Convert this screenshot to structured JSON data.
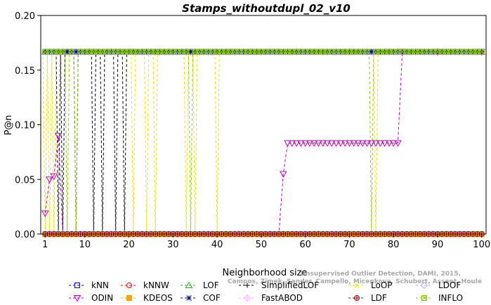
{
  "chart_data": {
    "type": "line",
    "title": "Stamps_withoutdupl_02_v10",
    "xlabel": "Neighborhood size",
    "ylabel": "P@n",
    "xlim": [
      0,
      101
    ],
    "ylim": [
      0,
      0.2
    ],
    "xticks": [
      1,
      10,
      20,
      30,
      40,
      50,
      60,
      70,
      80,
      90,
      100
    ],
    "yticks": [
      0.0,
      0.05,
      0.1,
      0.15,
      0.2
    ],
    "ytick_labels": [
      "0.00",
      "0.05",
      "0.10",
      "0.15",
      "0.20"
    ],
    "grid": false,
    "legend_position": "bottom",
    "watermark": [
      "Campos, Zimek, Sander, Campello, Micenkova, Schubert, Assent, Houle",
      "Unsupervised Outlier Detection, DAMI, 2015."
    ],
    "series": [
      {
        "name": "kNN",
        "color": "#0000ff",
        "marker": "square",
        "segments": [
          {
            "x0": 1,
            "x1": 100,
            "y": 0.1667
          }
        ]
      },
      {
        "name": "kNNW",
        "color": "#ff0000",
        "marker": "circle",
        "segments": [
          {
            "x0": 1,
            "x1": 100,
            "y": 0.1667
          }
        ]
      },
      {
        "name": "LOF",
        "color": "#00cc00",
        "marker": "triangle-up",
        "segments": [
          {
            "x0": 1,
            "x1": 100,
            "y": 0.1667
          }
        ]
      },
      {
        "name": "SimplifiedLOF",
        "color": "#000000",
        "marker": "plus",
        "segments": [
          {
            "x0": 1,
            "x1": 100,
            "y": 0.1667
          }
        ],
        "drops": [
          4,
          5,
          8,
          12,
          14,
          17,
          19
        ],
        "drops_to": 0.0
      },
      {
        "name": "LoOP",
        "color": "#e6e600",
        "marker": "x",
        "segments": [
          {
            "x0": 1,
            "x1": 100,
            "y": 0.1667
          }
        ],
        "drops": [
          1,
          2,
          3,
          21,
          24,
          26,
          33,
          35,
          40,
          76
        ],
        "drops_to": 0.0,
        "low_segment": {
          "x0": 21,
          "x1": 76,
          "y": 0.002
        }
      },
      {
        "name": "LDOF",
        "color": "#b0b0ff",
        "marker": "diamond",
        "segments": [
          {
            "x0": 1,
            "x1": 100,
            "y": 0.1667
          }
        ],
        "low_segment": {
          "x0": 20,
          "x1": 100,
          "y": 0.002
        }
      },
      {
        "name": "ODIN",
        "color": "#cc00cc",
        "marker": "triangle-down",
        "points": [
          [
            1,
            0.019
          ],
          [
            2,
            0.05
          ],
          [
            3,
            0.053
          ],
          [
            4,
            0.09
          ],
          [
            5,
            0.0
          ],
          [
            6,
            0.0
          ],
          [
            10,
            0.0
          ],
          [
            20,
            0.0
          ],
          [
            30,
            0.0
          ],
          [
            40,
            0.0
          ],
          [
            50,
            0.0
          ],
          [
            54,
            0.0
          ],
          [
            55,
            0.055
          ],
          [
            56,
            0.0833
          ],
          [
            57,
            0.0833
          ],
          [
            58,
            0.0833
          ],
          [
            59,
            0.0833
          ],
          [
            60,
            0.0833
          ],
          [
            61,
            0.0833
          ],
          [
            62,
            0.0833
          ],
          [
            63,
            0.0833
          ],
          [
            64,
            0.0833
          ],
          [
            65,
            0.0833
          ],
          [
            66,
            0.0833
          ],
          [
            67,
            0.0833
          ],
          [
            68,
            0.0833
          ],
          [
            69,
            0.0833
          ],
          [
            70,
            0.0833
          ],
          [
            71,
            0.0833
          ],
          [
            72,
            0.0833
          ],
          [
            73,
            0.0833
          ],
          [
            74,
            0.0833
          ],
          [
            75,
            0.0833
          ],
          [
            76,
            0.0833
          ],
          [
            77,
            0.0833
          ],
          [
            78,
            0.0833
          ],
          [
            79,
            0.0833
          ],
          [
            80,
            0.0833
          ],
          [
            81,
            0.0833
          ],
          [
            82,
            0.1667
          ],
          [
            90,
            0.1667
          ],
          [
            100,
            0.1667
          ]
        ]
      },
      {
        "name": "KDEOS",
        "color": "#ffa500",
        "marker": "square-filled",
        "segments": [
          {
            "x0": 1,
            "x1": 100,
            "y": 0.0
          }
        ]
      },
      {
        "name": "COF",
        "color": "#000080",
        "marker": "star",
        "segments": [
          {
            "x0": 1,
            "x1": 100,
            "y": 0.1667
          }
        ]
      },
      {
        "name": "FastABOD",
        "color": "#ffb6ff",
        "marker": "diamond-plus",
        "segments": [
          {
            "x0": 1,
            "x1": 100,
            "y": 0.0
          }
        ]
      },
      {
        "name": "LDF",
        "color": "#a00000",
        "marker": "circle-plus",
        "segments": [
          {
            "x0": 1,
            "x1": 100,
            "y": 0.0
          }
        ]
      },
      {
        "name": "INFLO",
        "color": "#88cc00",
        "marker": "square-x",
        "segments": [
          {
            "x0": 1,
            "x1": 100,
            "y": 0.1667
          }
        ],
        "drops": [
          6,
          8,
          34,
          75
        ],
        "drops_to": 0.0
      }
    ]
  }
}
